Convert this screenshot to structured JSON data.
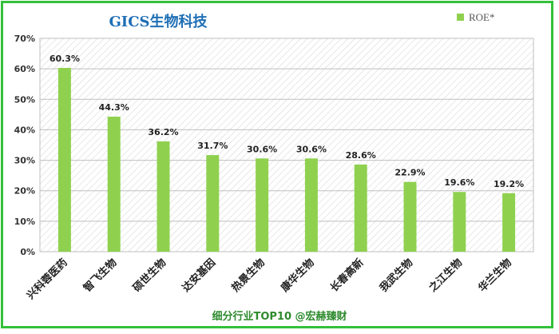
{
  "chart_data": {
    "type": "bar",
    "title": "GICS生物科技",
    "categories": [
      "兴科蓉医药",
      "智飞生物",
      "硕世生物",
      "达安基因",
      "热景生物",
      "康华生物",
      "长春高新",
      "我武生物",
      "之江生物",
      "华兰生物"
    ],
    "series": [
      {
        "name": "ROE*",
        "values": [
          60.3,
          44.3,
          36.2,
          31.7,
          30.6,
          30.6,
          28.6,
          22.9,
          19.6,
          19.2
        ]
      }
    ],
    "data_labels": [
      "60.3%",
      "44.3%",
      "36.2%",
      "31.7%",
      "30.6%",
      "30.6%",
      "28.6%",
      "22.9%",
      "19.6%",
      "19.2%"
    ],
    "yticks": [
      "0%",
      "10%",
      "20%",
      "30%",
      "40%",
      "50%",
      "60%",
      "70%"
    ],
    "ylim": [
      0,
      70
    ],
    "grid": true,
    "legend_position": "top-right",
    "bar_color": "#8fd14f",
    "xlabel": "",
    "ylabel": ""
  },
  "footer": "细分行业TOP10 @宏赫臻财",
  "colors": {
    "border": "#34c03a",
    "title": "#1f6fb5",
    "footer": "#2d8a2d"
  }
}
